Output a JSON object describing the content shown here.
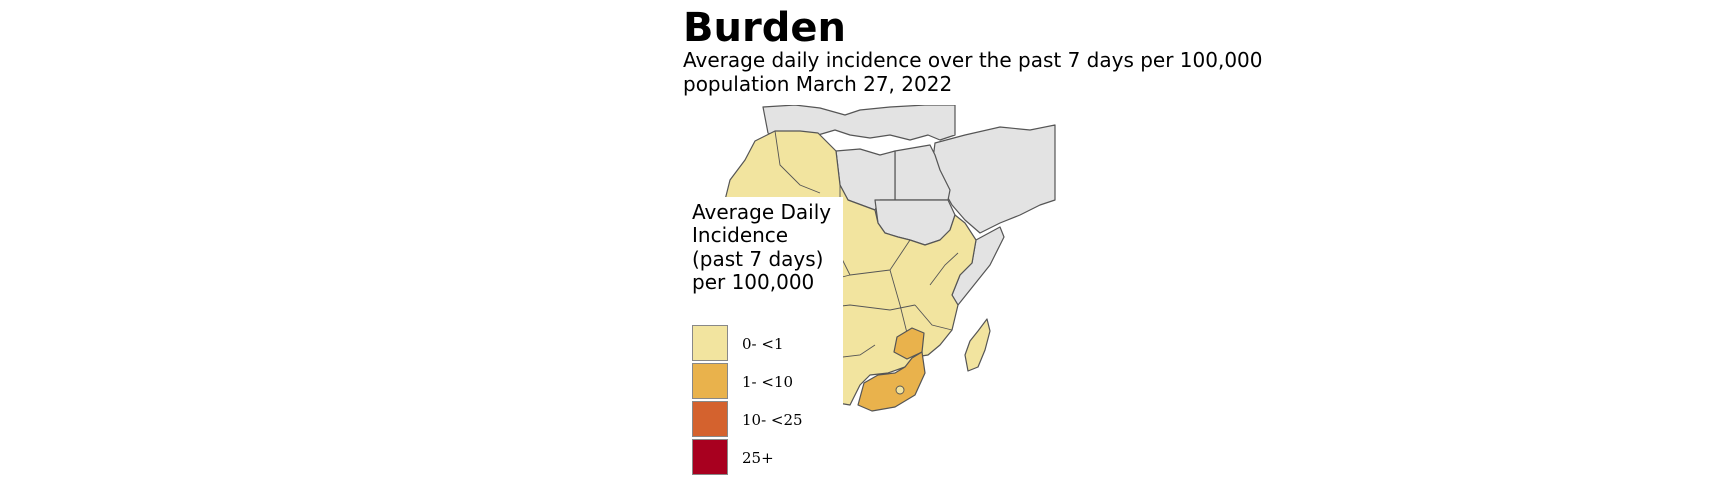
{
  "title": "Burden",
  "subtitle": "Average daily incidence over the past 7 days per 100,000 population March 27, 2022",
  "legend": {
    "title": "Average Daily Incidence (past 7 days) per 100,000",
    "items": [
      {
        "label": "0- <1",
        "color": "#f2e49f"
      },
      {
        "label": "1- <10",
        "color": "#e9b24c"
      },
      {
        "label": "10- <25",
        "color": "#d4622e"
      },
      {
        "label": "25+",
        "color": "#a8001f"
      }
    ]
  },
  "map": {
    "region": "Africa",
    "no_data_color": "#e3e3e3",
    "border_color": "#555555",
    "regions": [
      {
        "name": "africa-low-incidence",
        "category": "0- <1"
      },
      {
        "name": "zimbabwe",
        "category": "1- <10"
      },
      {
        "name": "south-africa",
        "category": "1- <10"
      },
      {
        "name": "madagascar",
        "category": "0- <1"
      },
      {
        "name": "algeria",
        "category": "0- <1"
      },
      {
        "name": "ethiopia",
        "category": "0- <1"
      },
      {
        "name": "egypt",
        "category": "no-data"
      },
      {
        "name": "libya",
        "category": "no-data"
      },
      {
        "name": "sudan",
        "category": "no-data"
      },
      {
        "name": "somalia",
        "category": "no-data"
      },
      {
        "name": "europe",
        "category": "no-data"
      },
      {
        "name": "middle-east",
        "category": "no-data"
      }
    ]
  }
}
